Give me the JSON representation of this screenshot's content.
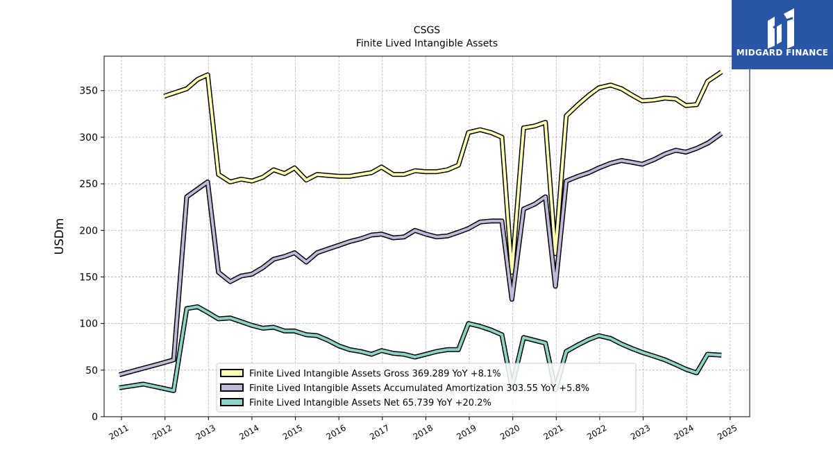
{
  "brand": {
    "name": "MIDGARD FINANCE",
    "logo_icon": "midgard-m-icon",
    "color": "#2a56a8"
  },
  "chart_data": {
    "type": "line",
    "title": "CSGS",
    "subtitle": "Finite Lived Intangible Assets",
    "xlabel": "",
    "ylabel": "USDm",
    "xlim": [
      2010.6,
      2025.45
    ],
    "ylim": [
      0,
      387
    ],
    "yticks": [
      0,
      50,
      100,
      150,
      200,
      250,
      300,
      350
    ],
    "xticks": [
      2011,
      2012,
      2013,
      2014,
      2015,
      2016,
      2017,
      2018,
      2019,
      2020,
      2021,
      2022,
      2023,
      2024,
      2025
    ],
    "grid": true,
    "legend_position": "lower-center",
    "series": [
      {
        "name": "Finite Lived Intangible Assets Gross",
        "legend": "Finite Lived Intangible Assets Gross  369.289 YoY +8.1%",
        "color": "#ffffb3",
        "points": [
          [
            2011.98,
            344
          ],
          [
            2012.5,
            352
          ],
          [
            2012.75,
            362
          ],
          [
            2012.98,
            367
          ],
          [
            2013.23,
            260
          ],
          [
            2013.5,
            252
          ],
          [
            2013.75,
            255
          ],
          [
            2014.0,
            253
          ],
          [
            2014.25,
            257
          ],
          [
            2014.5,
            265
          ],
          [
            2014.75,
            261
          ],
          [
            2014.98,
            267
          ],
          [
            2015.25,
            254
          ],
          [
            2015.5,
            260
          ],
          [
            2015.75,
            259
          ],
          [
            2016.0,
            258
          ],
          [
            2016.25,
            258
          ],
          [
            2016.5,
            260
          ],
          [
            2016.75,
            262
          ],
          [
            2016.98,
            268
          ],
          [
            2017.25,
            260
          ],
          [
            2017.5,
            260
          ],
          [
            2017.75,
            264
          ],
          [
            2018.0,
            263
          ],
          [
            2018.25,
            263
          ],
          [
            2018.5,
            265
          ],
          [
            2018.75,
            270
          ],
          [
            2018.98,
            305
          ],
          [
            2019.25,
            308
          ],
          [
            2019.5,
            305
          ],
          [
            2019.75,
            300
          ],
          [
            2019.98,
            155
          ],
          [
            2020.25,
            310
          ],
          [
            2020.5,
            312
          ],
          [
            2020.75,
            316
          ],
          [
            2020.98,
            175
          ],
          [
            2021.23,
            323
          ],
          [
            2021.5,
            335
          ],
          [
            2021.75,
            345
          ],
          [
            2021.98,
            353
          ],
          [
            2022.25,
            356
          ],
          [
            2022.5,
            352
          ],
          [
            2022.75,
            345
          ],
          [
            2022.98,
            339
          ],
          [
            2023.25,
            340
          ],
          [
            2023.5,
            342
          ],
          [
            2023.75,
            341
          ],
          [
            2023.98,
            334
          ],
          [
            2024.23,
            335
          ],
          [
            2024.48,
            360
          ],
          [
            2024.8,
            370
          ]
        ]
      },
      {
        "name": "Finite Lived Intangible Assets Accumulated Amortization",
        "legend": "Finite Lived Intangible Assets Accumulated Amortization  303.55 YoY +5.8%",
        "color": "#bebada",
        "points": [
          [
            2010.95,
            45
          ],
          [
            2011.5,
            52
          ],
          [
            2011.9,
            57
          ],
          [
            2012.2,
            61
          ],
          [
            2012.5,
            236
          ],
          [
            2012.98,
            252
          ],
          [
            2013.23,
            155
          ],
          [
            2013.5,
            145
          ],
          [
            2013.75,
            151
          ],
          [
            2014.0,
            153
          ],
          [
            2014.25,
            160
          ],
          [
            2014.5,
            169
          ],
          [
            2014.75,
            172
          ],
          [
            2014.98,
            176
          ],
          [
            2015.25,
            166
          ],
          [
            2015.5,
            176
          ],
          [
            2015.75,
            180
          ],
          [
            2016.0,
            184
          ],
          [
            2016.25,
            188
          ],
          [
            2016.5,
            191
          ],
          [
            2016.75,
            195
          ],
          [
            2016.98,
            196
          ],
          [
            2017.25,
            192
          ],
          [
            2017.5,
            193
          ],
          [
            2017.75,
            200
          ],
          [
            2018.0,
            196
          ],
          [
            2018.25,
            193
          ],
          [
            2018.5,
            194
          ],
          [
            2018.75,
            198
          ],
          [
            2018.98,
            202
          ],
          [
            2019.25,
            209
          ],
          [
            2019.5,
            210
          ],
          [
            2019.75,
            210
          ],
          [
            2019.98,
            126
          ],
          [
            2020.25,
            223
          ],
          [
            2020.5,
            228
          ],
          [
            2020.75,
            236
          ],
          [
            2020.98,
            140
          ],
          [
            2021.23,
            253
          ],
          [
            2021.5,
            258
          ],
          [
            2021.75,
            262
          ],
          [
            2021.98,
            267
          ],
          [
            2022.25,
            272
          ],
          [
            2022.5,
            275
          ],
          [
            2022.75,
            273
          ],
          [
            2022.98,
            271
          ],
          [
            2023.25,
            276
          ],
          [
            2023.5,
            282
          ],
          [
            2023.75,
            286
          ],
          [
            2023.98,
            284
          ],
          [
            2024.23,
            288
          ],
          [
            2024.5,
            294
          ],
          [
            2024.8,
            304
          ]
        ]
      },
      {
        "name": "Finite Lived Intangible Assets Net",
        "legend": "Finite Lived Intangible Assets Net  65.739 YoY +20.2%",
        "color": "#8dd3c7",
        "points": [
          [
            2010.95,
            31
          ],
          [
            2011.5,
            35
          ],
          [
            2011.9,
            31
          ],
          [
            2012.2,
            28
          ],
          [
            2012.5,
            116
          ],
          [
            2012.75,
            118
          ],
          [
            2012.98,
            112
          ],
          [
            2013.23,
            105
          ],
          [
            2013.5,
            106
          ],
          [
            2013.75,
            102
          ],
          [
            2014.0,
            98
          ],
          [
            2014.25,
            95
          ],
          [
            2014.5,
            96
          ],
          [
            2014.75,
            92
          ],
          [
            2014.98,
            92
          ],
          [
            2015.25,
            88
          ],
          [
            2015.5,
            87
          ],
          [
            2015.75,
            82
          ],
          [
            2016.0,
            76
          ],
          [
            2016.25,
            72
          ],
          [
            2016.5,
            70
          ],
          [
            2016.75,
            67
          ],
          [
            2016.98,
            71
          ],
          [
            2017.25,
            68
          ],
          [
            2017.5,
            67
          ],
          [
            2017.75,
            64
          ],
          [
            2018.0,
            67
          ],
          [
            2018.25,
            70
          ],
          [
            2018.5,
            72
          ],
          [
            2018.75,
            72
          ],
          [
            2018.98,
            100
          ],
          [
            2019.25,
            97
          ],
          [
            2019.5,
            93
          ],
          [
            2019.75,
            88
          ],
          [
            2019.98,
            32
          ],
          [
            2020.25,
            85
          ],
          [
            2020.5,
            82
          ],
          [
            2020.75,
            79
          ],
          [
            2020.98,
            29
          ],
          [
            2021.23,
            70
          ],
          [
            2021.5,
            77
          ],
          [
            2021.75,
            83
          ],
          [
            2021.98,
            87
          ],
          [
            2022.25,
            84
          ],
          [
            2022.5,
            78
          ],
          [
            2022.75,
            73
          ],
          [
            2022.98,
            69
          ],
          [
            2023.25,
            65
          ],
          [
            2023.5,
            61
          ],
          [
            2023.75,
            56
          ],
          [
            2023.98,
            51
          ],
          [
            2024.23,
            47
          ],
          [
            2024.48,
            67
          ],
          [
            2024.8,
            66
          ]
        ]
      }
    ]
  }
}
